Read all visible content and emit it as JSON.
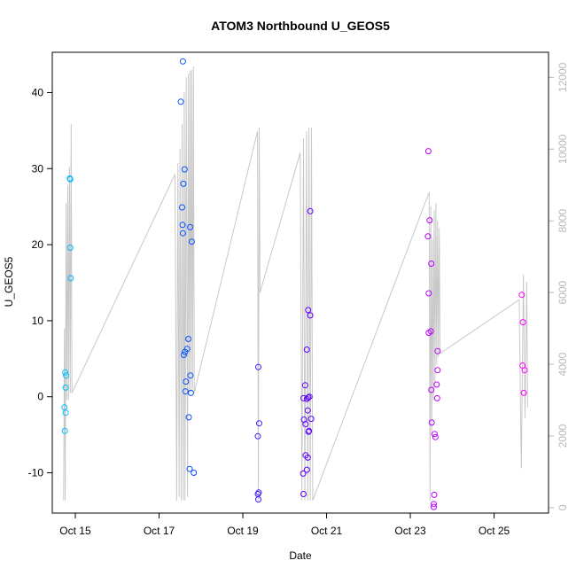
{
  "chart_data": {
    "type": "scatter",
    "title": "ATOM3 Northbound U_GEOS5",
    "xlabel": "Date",
    "ylabel": "U_GEOS5",
    "x_unit": "days (October)",
    "xlim": [
      14.45,
      26.3
    ],
    "ylim": [
      -15.3,
      45.3
    ],
    "y2lim": [
      -150,
      12700
    ],
    "x_ticks": [
      {
        "value": 15,
        "label": "Oct 15"
      },
      {
        "value": 17,
        "label": "Oct 17"
      },
      {
        "value": 19,
        "label": "Oct 19"
      },
      {
        "value": 21,
        "label": "Oct 21"
      },
      {
        "value": 23,
        "label": "Oct 23"
      },
      {
        "value": 25,
        "label": "Oct 25"
      }
    ],
    "y_ticks": [
      {
        "value": -10,
        "label": "-10"
      },
      {
        "value": 0,
        "label": "0"
      },
      {
        "value": 10,
        "label": "10"
      },
      {
        "value": 20,
        "label": "20"
      },
      {
        "value": 30,
        "label": "30"
      },
      {
        "value": 40,
        "label": "40"
      }
    ],
    "y2_ticks": [
      {
        "value": 0,
        "label": "0"
      },
      {
        "value": 2000,
        "label": "2000"
      },
      {
        "value": 4000,
        "label": "4000"
      },
      {
        "value": 6000,
        "label": "6000"
      },
      {
        "value": 8000,
        "label": "8000"
      },
      {
        "value": 10000,
        "label": "10000"
      },
      {
        "value": 12000,
        "label": "12000"
      }
    ],
    "grid": false,
    "legend": "none",
    "color_scale": [
      "#00bfff",
      "#0055ff",
      "#5500ff",
      "#aa00ff",
      "#ff00ff"
    ],
    "points": [
      {
        "x": 14.76,
        "y": 3.2
      },
      {
        "x": 14.78,
        "y": 2.8
      },
      {
        "x": 14.77,
        "y": 1.2
      },
      {
        "x": 14.74,
        "y": -1.4
      },
      {
        "x": 14.77,
        "y": -2.1
      },
      {
        "x": 14.75,
        "y": -4.5
      },
      {
        "x": 14.87,
        "y": 28.7
      },
      {
        "x": 14.88,
        "y": 28.6
      },
      {
        "x": 14.88,
        "y": 19.6
      },
      {
        "x": 14.89,
        "y": 15.6
      },
      {
        "x": 17.52,
        "y": 38.8
      },
      {
        "x": 17.57,
        "y": 44.1
      },
      {
        "x": 17.61,
        "y": 29.9
      },
      {
        "x": 17.58,
        "y": 28.0
      },
      {
        "x": 17.55,
        "y": 24.9
      },
      {
        "x": 17.56,
        "y": 22.6
      },
      {
        "x": 17.57,
        "y": 21.5
      },
      {
        "x": 17.74,
        "y": 22.3
      },
      {
        "x": 17.78,
        "y": 20.4
      },
      {
        "x": 17.7,
        "y": 7.6
      },
      {
        "x": 17.67,
        "y": 6.3
      },
      {
        "x": 17.62,
        "y": 5.9
      },
      {
        "x": 17.59,
        "y": 5.5
      },
      {
        "x": 17.75,
        "y": 2.8
      },
      {
        "x": 17.64,
        "y": 2.0
      },
      {
        "x": 17.63,
        "y": 0.7
      },
      {
        "x": 17.76,
        "y": 0.5
      },
      {
        "x": 17.71,
        "y": -2.7
      },
      {
        "x": 17.73,
        "y": -9.5
      },
      {
        "x": 17.83,
        "y": -10.0
      },
      {
        "x": 19.37,
        "y": 3.9
      },
      {
        "x": 19.39,
        "y": -3.5
      },
      {
        "x": 19.36,
        "y": -5.2
      },
      {
        "x": 19.38,
        "y": -12.6
      },
      {
        "x": 19.36,
        "y": -12.8
      },
      {
        "x": 19.37,
        "y": -13.5
      },
      {
        "x": 20.61,
        "y": 24.4
      },
      {
        "x": 20.56,
        "y": 11.4
      },
      {
        "x": 20.61,
        "y": 10.7
      },
      {
        "x": 20.53,
        "y": 6.2
      },
      {
        "x": 20.49,
        "y": 1.5
      },
      {
        "x": 20.45,
        "y": -0.2
      },
      {
        "x": 20.53,
        "y": -0.3
      },
      {
        "x": 20.56,
        "y": -0.1
      },
      {
        "x": 20.59,
        "y": 0.0
      },
      {
        "x": 20.55,
        "y": -1.8
      },
      {
        "x": 20.46,
        "y": -3.0
      },
      {
        "x": 20.5,
        "y": -3.6
      },
      {
        "x": 20.63,
        "y": -2.9
      },
      {
        "x": 20.57,
        "y": -4.6
      },
      {
        "x": 20.58,
        "y": -4.5
      },
      {
        "x": 20.5,
        "y": -7.7
      },
      {
        "x": 20.55,
        "y": -8.0
      },
      {
        "x": 20.53,
        "y": -9.6
      },
      {
        "x": 20.44,
        "y": -10.1
      },
      {
        "x": 20.45,
        "y": -12.8
      },
      {
        "x": 23.43,
        "y": 32.3
      },
      {
        "x": 23.46,
        "y": 23.2
      },
      {
        "x": 23.42,
        "y": 21.1
      },
      {
        "x": 23.5,
        "y": 17.5
      },
      {
        "x": 23.44,
        "y": 13.6
      },
      {
        "x": 23.44,
        "y": 8.4
      },
      {
        "x": 23.49,
        "y": 8.6
      },
      {
        "x": 23.65,
        "y": 6.0
      },
      {
        "x": 23.65,
        "y": 3.5
      },
      {
        "x": 23.63,
        "y": 1.6
      },
      {
        "x": 23.5,
        "y": 0.9
      },
      {
        "x": 23.64,
        "y": -0.2
      },
      {
        "x": 23.51,
        "y": -3.4
      },
      {
        "x": 23.58,
        "y": -4.9
      },
      {
        "x": 23.6,
        "y": -5.3
      },
      {
        "x": 23.57,
        "y": -12.9
      },
      {
        "x": 23.56,
        "y": -14.1
      },
      {
        "x": 23.56,
        "y": -14.5
      },
      {
        "x": 25.66,
        "y": 13.4
      },
      {
        "x": 25.69,
        "y": 9.8
      },
      {
        "x": 25.68,
        "y": 4.1
      },
      {
        "x": 25.73,
        "y": 3.5
      },
      {
        "x": 25.71,
        "y": 0.5
      }
    ],
    "altitude_line": [
      [
        14.72,
        200
      ],
      [
        14.74,
        5000
      ],
      [
        14.76,
        200
      ],
      [
        14.78,
        8500
      ],
      [
        14.8,
        3000
      ],
      [
        14.82,
        9000
      ],
      [
        14.84,
        3000
      ],
      [
        14.86,
        9500
      ],
      [
        14.88,
        3200
      ],
      [
        14.9,
        10700
      ],
      [
        14.92,
        3200
      ],
      [
        17.38,
        9300
      ],
      [
        17.42,
        200
      ],
      [
        17.45,
        9600
      ],
      [
        17.48,
        300
      ],
      [
        17.5,
        10000
      ],
      [
        17.53,
        200
      ],
      [
        17.55,
        10700
      ],
      [
        17.58,
        200
      ],
      [
        17.6,
        11600
      ],
      [
        17.62,
        200
      ],
      [
        17.65,
        12000
      ],
      [
        17.68,
        300
      ],
      [
        17.7,
        12100
      ],
      [
        17.72,
        3200
      ],
      [
        17.74,
        12200
      ],
      [
        17.76,
        3200
      ],
      [
        17.78,
        12200
      ],
      [
        17.8,
        3300
      ],
      [
        17.82,
        12300
      ],
      [
        17.84,
        3200
      ],
      [
        19.35,
        10500
      ],
      [
        19.37,
        200
      ],
      [
        19.39,
        10600
      ],
      [
        19.41,
        6000
      ],
      [
        20.37,
        9900
      ],
      [
        20.41,
        200
      ],
      [
        20.45,
        10300
      ],
      [
        20.48,
        200
      ],
      [
        20.52,
        10500
      ],
      [
        20.55,
        200
      ],
      [
        20.58,
        10600
      ],
      [
        20.61,
        200
      ],
      [
        20.64,
        10600
      ],
      [
        20.67,
        200
      ],
      [
        23.45,
        8800
      ],
      [
        23.47,
        200
      ],
      [
        23.49,
        8400
      ],
      [
        23.51,
        2000
      ],
      [
        23.53,
        7500
      ],
      [
        23.55,
        3000
      ],
      [
        23.57,
        8300
      ],
      [
        23.59,
        3500
      ],
      [
        23.61,
        8500
      ],
      [
        23.63,
        4000
      ],
      [
        23.65,
        8000
      ],
      [
        23.67,
        4200
      ],
      [
        23.69,
        7800
      ],
      [
        23.71,
        4300
      ],
      [
        25.6,
        5800
      ],
      [
        25.65,
        1100
      ],
      [
        25.7,
        6500
      ],
      [
        25.74,
        2500
      ],
      [
        25.78,
        6300
      ],
      [
        25.8,
        2800
      ]
    ]
  }
}
